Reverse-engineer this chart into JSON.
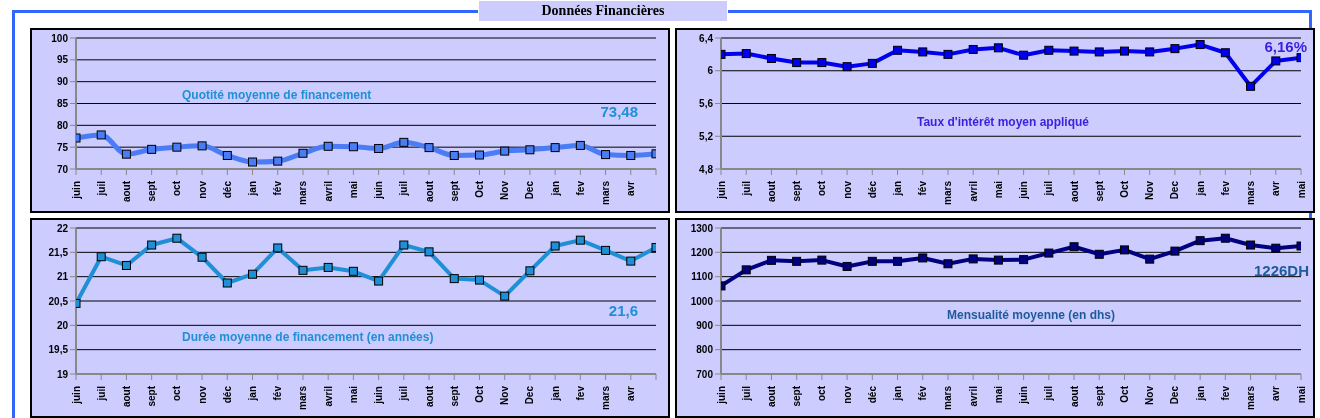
{
  "chart_data": [
    {
      "type": "line",
      "title": "Quotité moyenne de financement",
      "annotations": [
        "Données Financières",
        "73,48"
      ],
      "categories": [
        "juin",
        "juil",
        "aout",
        "sept",
        "oct",
        "nov",
        "déc",
        "jan",
        "fév",
        "mars",
        "avril",
        "mai",
        "juin",
        "juil",
        "aout",
        "sept",
        "Oct",
        "Nov",
        "Dec",
        "jan",
        "fev",
        "mars",
        "avr",
        null
      ],
      "series": [
        {
          "color": "#4a7cf5",
          "values": [
            77.1,
            77.8,
            73.4,
            74.5,
            75.0,
            75.3,
            73.1,
            71.6,
            71.8,
            73.6,
            75.2,
            75.1,
            74.7,
            76.1,
            74.9,
            73.1,
            73.2,
            74.1,
            74.4,
            74.9,
            75.4,
            73.3,
            73.1,
            73.48
          ]
        }
      ],
      "ylim": [
        70,
        100
      ],
      "yticks": [
        70,
        75,
        80,
        85,
        90,
        95,
        100
      ],
      "grid": "y",
      "marker": "square",
      "line_style": "solid"
    },
    {
      "type": "line",
      "title": "Taux d'intérêt moyen appliqué",
      "annotations": [
        "6,16%"
      ],
      "categories": [
        "juin",
        "juil",
        "aout",
        "sept",
        "oct",
        "nov",
        "déc",
        "jan",
        "fév",
        "mars",
        "avril",
        "mai",
        "juin",
        "juil",
        "aout",
        "sept",
        "Oct",
        "Nov",
        "Dec",
        "jan",
        "fev",
        "mars",
        "avr",
        "mai"
      ],
      "series": [
        {
          "color": "#0000ee",
          "values": [
            6.2,
            6.21,
            6.15,
            6.1,
            6.1,
            6.05,
            6.09,
            6.25,
            6.23,
            6.2,
            6.26,
            6.28,
            6.19,
            6.25,
            6.24,
            6.23,
            6.24,
            6.23,
            6.27,
            6.32,
            6.22,
            5.81,
            6.12,
            6.16
          ]
        }
      ],
      "ylim": [
        4.8,
        6.4
      ],
      "yticks": [
        {
          "value": 4.8,
          "label": "4,8"
        },
        {
          "value": 5.2,
          "label": "5,2"
        },
        {
          "value": 5.6,
          "label": "5,6"
        },
        6,
        {
          "value": 6.4,
          "label": "6,4"
        }
      ],
      "grid": "y",
      "marker": "square",
      "line_style": "solid"
    },
    {
      "type": "line",
      "title": "Durée moyenne de financement (en années)",
      "annotations": [
        "21,6"
      ],
      "categories": [
        "juin",
        "juil",
        "aout",
        "sept",
        "oct",
        "nov",
        "déc",
        "jan",
        "fév",
        "mars",
        "avril",
        "mai",
        "juin",
        "juil",
        "aout",
        "sept",
        "Oct",
        "Nov",
        "Dec",
        "jan",
        "fev",
        "mars",
        "avr",
        null
      ],
      "series": [
        {
          "color": "#1f8fd6",
          "values": [
            20.45,
            21.41,
            21.23,
            21.65,
            21.79,
            21.4,
            20.87,
            21.05,
            21.59,
            21.13,
            21.19,
            21.11,
            20.91,
            21.65,
            21.51,
            20.96,
            20.93,
            20.6,
            21.12,
            21.63,
            21.75,
            21.54,
            21.32,
            21.6
          ]
        }
      ],
      "ylim": [
        19,
        22
      ],
      "yticks": [
        19,
        {
          "value": 19.5,
          "label": "19,5"
        },
        20,
        {
          "value": 20.5,
          "label": "20,5"
        },
        21,
        {
          "value": 21.5,
          "label": "21,5"
        },
        22
      ],
      "grid": "y",
      "marker": "square",
      "line_style": "solid"
    },
    {
      "type": "line",
      "title": "Mensualité moyenne (en dhs)",
      "annotations": [
        "1226DH"
      ],
      "categories": [
        "juin",
        "juil",
        "aout",
        "sept",
        "oct",
        "nov",
        "déc",
        "jan",
        "fév",
        "mars",
        "avril",
        "mai",
        "juin",
        "juil",
        "aout",
        "sept",
        "Oct",
        "Nov",
        "Dec",
        "jan",
        "fev",
        "mars",
        "avr",
        "mai"
      ],
      "series": [
        {
          "color": "#000080",
          "values": [
            1062,
            1128,
            1167,
            1163,
            1168,
            1142,
            1163,
            1163,
            1177,
            1153,
            1173,
            1168,
            1170,
            1197,
            1223,
            1192,
            1210,
            1172,
            1205,
            1248,
            1258,
            1230,
            1217,
            1226
          ]
        }
      ],
      "ylim": [
        700,
        1300
      ],
      "yticks": [
        700,
        800,
        900,
        1000,
        1100,
        1200,
        1300
      ],
      "grid": "y",
      "marker": "square",
      "line_style": "solid"
    }
  ]
}
